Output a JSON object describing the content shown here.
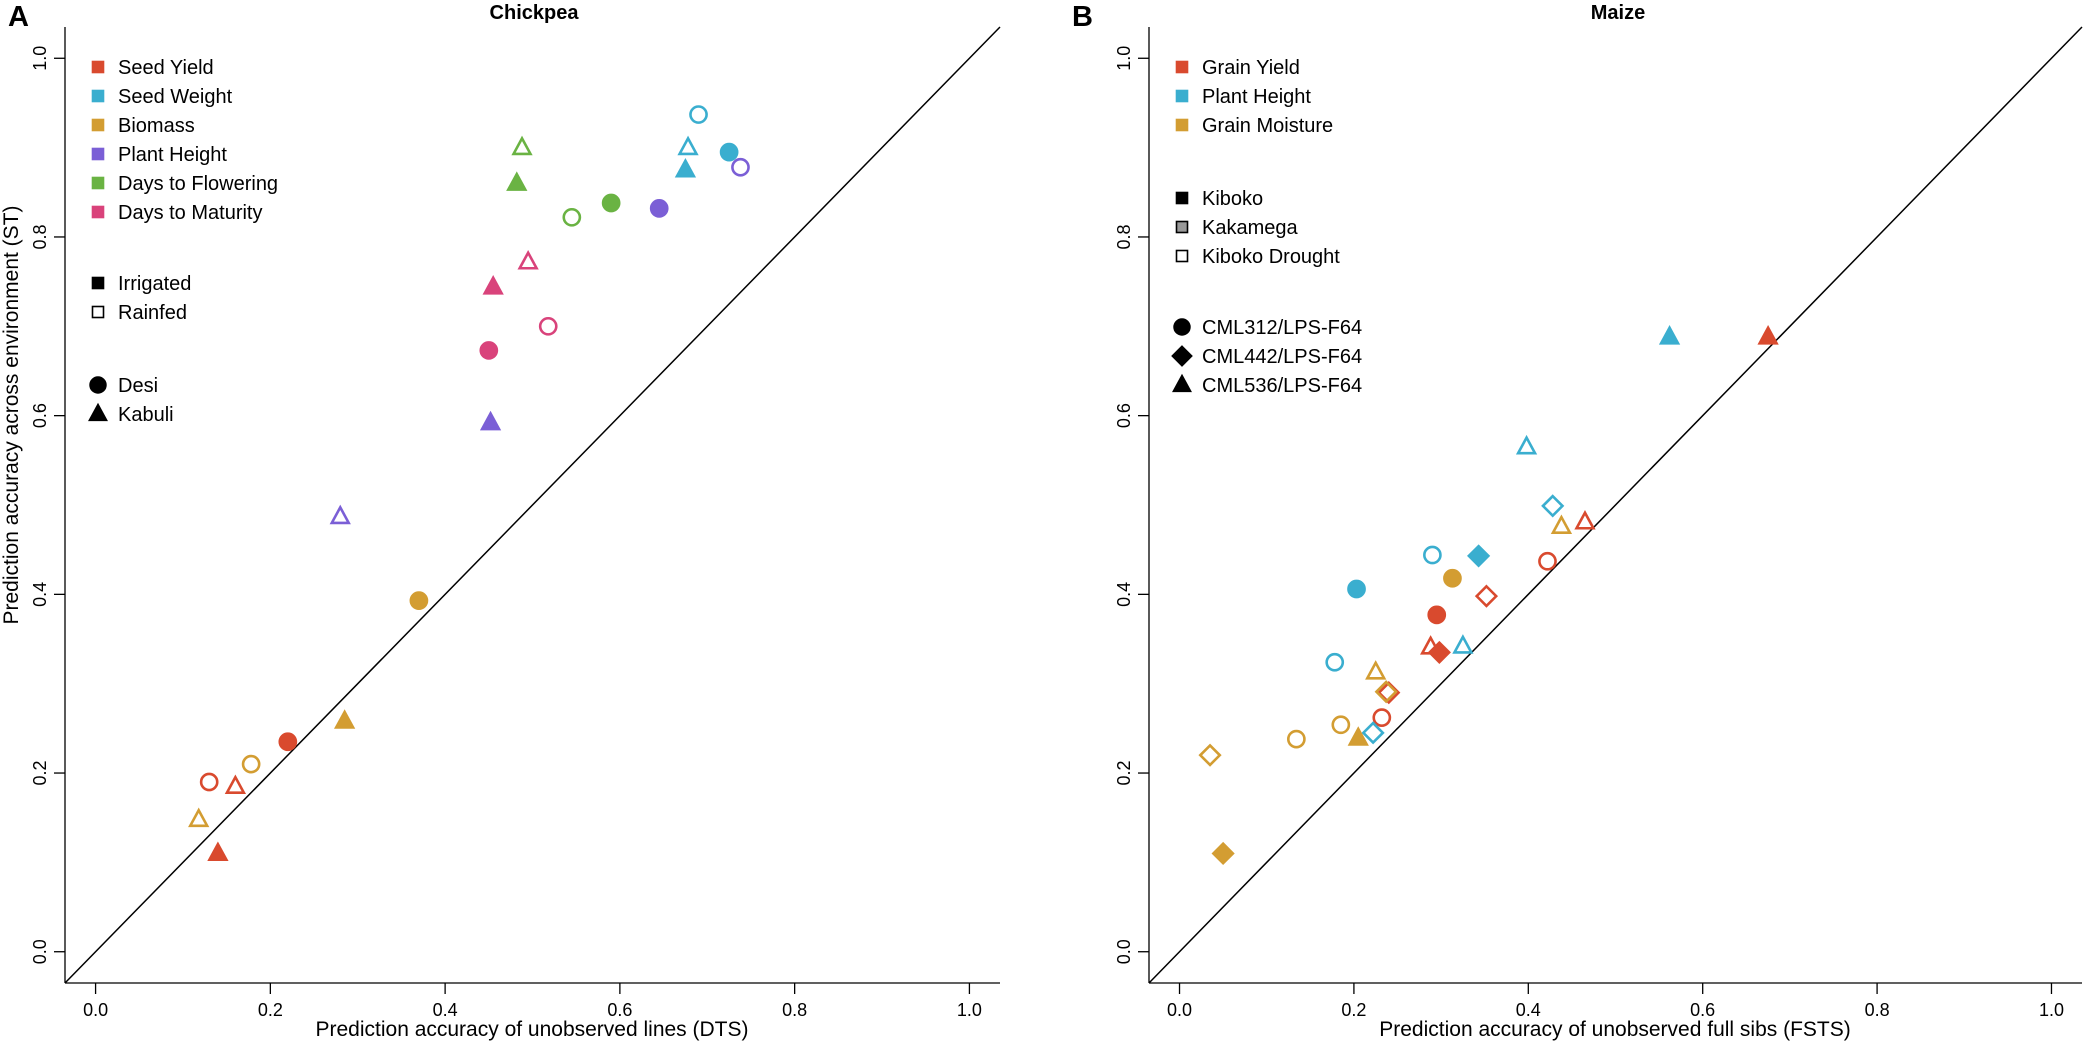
{
  "colors": {
    "red": "#d94a2e",
    "cyan": "#3aaecf",
    "gold": "#d39d32",
    "purple": "#7b5fd6",
    "green": "#6ab343",
    "pink": "#d9437b",
    "gray": "#999999",
    "black": "#000000"
  },
  "chart_data": [
    {
      "type": "scatter",
      "panel_letter": "A",
      "title": "Chickpea",
      "xlabel": "Prediction accuracy of unobserved lines (DTS)",
      "ylabel": "Prediction accuracy across environment (ST)",
      "xlim": [
        -0.035,
        1.035
      ],
      "ylim": [
        -0.035,
        1.035
      ],
      "xticks": [
        0.0,
        0.2,
        0.4,
        0.6,
        0.8,
        1.0
      ],
      "yticks": [
        0.0,
        0.2,
        0.4,
        0.6,
        0.8,
        1.0
      ],
      "tick_labels": [
        "0.0",
        "0.2",
        "0.4",
        "0.6",
        "0.8",
        "1.0"
      ],
      "reference_line": "y = x",
      "legend": {
        "placement": "top-left",
        "traits": [
          {
            "label": "Seed Yield",
            "color": "red"
          },
          {
            "label": "Seed Weight",
            "color": "cyan"
          },
          {
            "label": "Biomass",
            "color": "gold"
          },
          {
            "label": "Plant Height",
            "color": "purple"
          },
          {
            "label": "Days to Flowering",
            "color": "green"
          },
          {
            "label": "Days to Maturity",
            "color": "pink"
          }
        ],
        "fills": [
          {
            "label": "Irrigated",
            "fill": "solid"
          },
          {
            "label": "Rainfed",
            "fill": "open"
          }
        ],
        "shapes": [
          {
            "label": "Desi",
            "shape": "circle"
          },
          {
            "label": "Kabuli",
            "shape": "triangle"
          }
        ]
      },
      "points": [
        {
          "trait": "Seed Yield",
          "color": "red",
          "fill": "solid",
          "shape": "circle",
          "x": 0.22,
          "y": 0.235
        },
        {
          "trait": "Seed Yield",
          "color": "red",
          "fill": "solid",
          "shape": "triangle",
          "x": 0.14,
          "y": 0.11
        },
        {
          "trait": "Seed Yield",
          "color": "red",
          "fill": "open",
          "shape": "circle",
          "x": 0.13,
          "y": 0.19
        },
        {
          "trait": "Seed Yield",
          "color": "red",
          "fill": "open",
          "shape": "triangle",
          "x": 0.16,
          "y": 0.185
        },
        {
          "trait": "Seed Weight",
          "color": "cyan",
          "fill": "solid",
          "shape": "circle",
          "x": 0.725,
          "y": 0.895
        },
        {
          "trait": "Seed Weight",
          "color": "cyan",
          "fill": "solid",
          "shape": "triangle",
          "x": 0.675,
          "y": 0.875
        },
        {
          "trait": "Seed Weight",
          "color": "cyan",
          "fill": "open",
          "shape": "circle",
          "x": 0.69,
          "y": 0.937
        },
        {
          "trait": "Seed Weight",
          "color": "cyan",
          "fill": "open",
          "shape": "triangle",
          "x": 0.678,
          "y": 0.9
        },
        {
          "trait": "Biomass",
          "color": "gold",
          "fill": "solid",
          "shape": "circle",
          "x": 0.37,
          "y": 0.393
        },
        {
          "trait": "Biomass",
          "color": "gold",
          "fill": "solid",
          "shape": "triangle",
          "x": 0.285,
          "y": 0.258
        },
        {
          "trait": "Biomass",
          "color": "gold",
          "fill": "open",
          "shape": "circle",
          "x": 0.178,
          "y": 0.21
        },
        {
          "trait": "Biomass",
          "color": "gold",
          "fill": "open",
          "shape": "triangle",
          "x": 0.118,
          "y": 0.148
        },
        {
          "trait": "Plant Height",
          "color": "purple",
          "fill": "solid",
          "shape": "circle",
          "x": 0.645,
          "y": 0.832
        },
        {
          "trait": "Plant Height",
          "color": "purple",
          "fill": "solid",
          "shape": "triangle",
          "x": 0.452,
          "y": 0.592
        },
        {
          "trait": "Plant Height",
          "color": "purple",
          "fill": "open",
          "shape": "circle",
          "x": 0.738,
          "y": 0.878
        },
        {
          "trait": "Plant Height",
          "color": "purple",
          "fill": "open",
          "shape": "triangle",
          "x": 0.28,
          "y": 0.487
        },
        {
          "trait": "Days to Flowering",
          "color": "green",
          "fill": "solid",
          "shape": "circle",
          "x": 0.59,
          "y": 0.838
        },
        {
          "trait": "Days to Flowering",
          "color": "green",
          "fill": "solid",
          "shape": "triangle",
          "x": 0.482,
          "y": 0.86
        },
        {
          "trait": "Days to Flowering",
          "color": "green",
          "fill": "open",
          "shape": "circle",
          "x": 0.545,
          "y": 0.822
        },
        {
          "trait": "Days to Flowering",
          "color": "green",
          "fill": "open",
          "shape": "triangle",
          "x": 0.488,
          "y": 0.9
        },
        {
          "trait": "Days to Maturity",
          "color": "pink",
          "fill": "solid",
          "shape": "circle",
          "x": 0.45,
          "y": 0.673
        },
        {
          "trait": "Days to Maturity",
          "color": "pink",
          "fill": "solid",
          "shape": "triangle",
          "x": 0.455,
          "y": 0.744
        },
        {
          "trait": "Days to Maturity",
          "color": "pink",
          "fill": "open",
          "shape": "circle",
          "x": 0.518,
          "y": 0.7
        },
        {
          "trait": "Days to Maturity",
          "color": "pink",
          "fill": "open",
          "shape": "triangle",
          "x": 0.495,
          "y": 0.772
        }
      ]
    },
    {
      "type": "scatter",
      "panel_letter": "B",
      "title": "Maize",
      "xlabel": "Prediction accuracy of unobserved full sibs (FSTS)",
      "ylabel": "",
      "xlim": [
        -0.035,
        1.035
      ],
      "ylim": [
        -0.035,
        1.035
      ],
      "xticks": [
        0.0,
        0.2,
        0.4,
        0.6,
        0.8,
        1.0
      ],
      "yticks": [
        0.0,
        0.2,
        0.4,
        0.6,
        0.8,
        1.0
      ],
      "tick_labels": [
        "0.0",
        "0.2",
        "0.4",
        "0.6",
        "0.8",
        "1.0"
      ],
      "reference_line": "y = x",
      "legend": {
        "placement": "top-left",
        "traits": [
          {
            "label": "Grain Yield",
            "color": "red"
          },
          {
            "label": "Plant Height",
            "color": "cyan"
          },
          {
            "label": "Grain Moisture",
            "color": "gold"
          }
        ],
        "fills": [
          {
            "label": "Kiboko",
            "fill": "solid"
          },
          {
            "label": "Kakamega",
            "fill": "gray"
          },
          {
            "label": "Kiboko Drought",
            "fill": "open"
          }
        ],
        "shapes": [
          {
            "label": "CML312/LPS-F64",
            "shape": "circle"
          },
          {
            "label": "CML442/LPS-F64",
            "shape": "diamond"
          },
          {
            "label": "CML536/LPS-F64",
            "shape": "triangle"
          }
        ]
      },
      "points": [
        {
          "trait": "Grain Yield",
          "color": "red",
          "fill": "solid",
          "shape": "circle",
          "x": 0.295,
          "y": 0.377
        },
        {
          "trait": "Grain Yield",
          "color": "red",
          "fill": "solid",
          "shape": "diamond",
          "x": 0.298,
          "y": 0.335
        },
        {
          "trait": "Grain Yield",
          "color": "red",
          "fill": "solid",
          "shape": "triangle",
          "x": 0.675,
          "y": 0.688
        },
        {
          "trait": "Grain Yield",
          "color": "red",
          "fill": "open",
          "shape": "circle",
          "x": 0.422,
          "y": 0.437
        },
        {
          "trait": "Grain Yield",
          "color": "red",
          "fill": "open",
          "shape": "diamond",
          "x": 0.352,
          "y": 0.398
        },
        {
          "trait": "Grain Yield",
          "color": "red",
          "fill": "open",
          "shape": "triangle",
          "x": 0.465,
          "y": 0.481
        },
        {
          "trait": "Grain Yield",
          "color": "red",
          "fill": "open",
          "shape": "circle",
          "x": 0.232,
          "y": 0.262
        },
        {
          "trait": "Grain Yield",
          "color": "red",
          "fill": "open",
          "shape": "triangle",
          "x": 0.288,
          "y": 0.341
        },
        {
          "trait": "Grain Yield",
          "color": "red",
          "fill": "open",
          "shape": "diamond",
          "x": 0.24,
          "y": 0.29
        },
        {
          "trait": "Plant Height",
          "color": "cyan",
          "fill": "solid",
          "shape": "circle",
          "x": 0.203,
          "y": 0.406
        },
        {
          "trait": "Plant Height",
          "color": "cyan",
          "fill": "solid",
          "shape": "diamond",
          "x": 0.343,
          "y": 0.443
        },
        {
          "trait": "Plant Height",
          "color": "cyan",
          "fill": "solid",
          "shape": "triangle",
          "x": 0.562,
          "y": 0.688
        },
        {
          "trait": "Plant Height",
          "color": "cyan",
          "fill": "open",
          "shape": "circle",
          "x": 0.29,
          "y": 0.444
        },
        {
          "trait": "Plant Height",
          "color": "cyan",
          "fill": "open",
          "shape": "diamond",
          "x": 0.428,
          "y": 0.499
        },
        {
          "trait": "Plant Height",
          "color": "cyan",
          "fill": "open",
          "shape": "triangle",
          "x": 0.398,
          "y": 0.565
        },
        {
          "trait": "Plant Height",
          "color": "cyan",
          "fill": "open",
          "shape": "circle",
          "x": 0.178,
          "y": 0.324
        },
        {
          "trait": "Plant Height",
          "color": "cyan",
          "fill": "open",
          "shape": "diamond",
          "x": 0.222,
          "y": 0.245
        },
        {
          "trait": "Plant Height",
          "color": "cyan",
          "fill": "open",
          "shape": "triangle",
          "x": 0.325,
          "y": 0.342
        },
        {
          "trait": "Grain Moisture",
          "color": "gold",
          "fill": "solid",
          "shape": "circle",
          "x": 0.313,
          "y": 0.418
        },
        {
          "trait": "Grain Moisture",
          "color": "gold",
          "fill": "solid",
          "shape": "diamond",
          "x": 0.05,
          "y": 0.11
        },
        {
          "trait": "Grain Moisture",
          "color": "gold",
          "fill": "solid",
          "shape": "triangle",
          "x": 0.205,
          "y": 0.239
        },
        {
          "trait": "Grain Moisture",
          "color": "gold",
          "fill": "open",
          "shape": "circle",
          "x": 0.134,
          "y": 0.238
        },
        {
          "trait": "Grain Moisture",
          "color": "gold",
          "fill": "open",
          "shape": "diamond",
          "x": 0.035,
          "y": 0.22
        },
        {
          "trait": "Grain Moisture",
          "color": "gold",
          "fill": "open",
          "shape": "triangle",
          "x": 0.438,
          "y": 0.476
        },
        {
          "trait": "Grain Moisture",
          "color": "gold",
          "fill": "open",
          "shape": "circle",
          "x": 0.185,
          "y": 0.254
        },
        {
          "trait": "Grain Moisture",
          "color": "gold",
          "fill": "open",
          "shape": "triangle",
          "x": 0.225,
          "y": 0.313
        },
        {
          "trait": "Grain Moisture",
          "color": "gold",
          "fill": "open",
          "shape": "diamond",
          "x": 0.237,
          "y": 0.291
        }
      ]
    }
  ]
}
